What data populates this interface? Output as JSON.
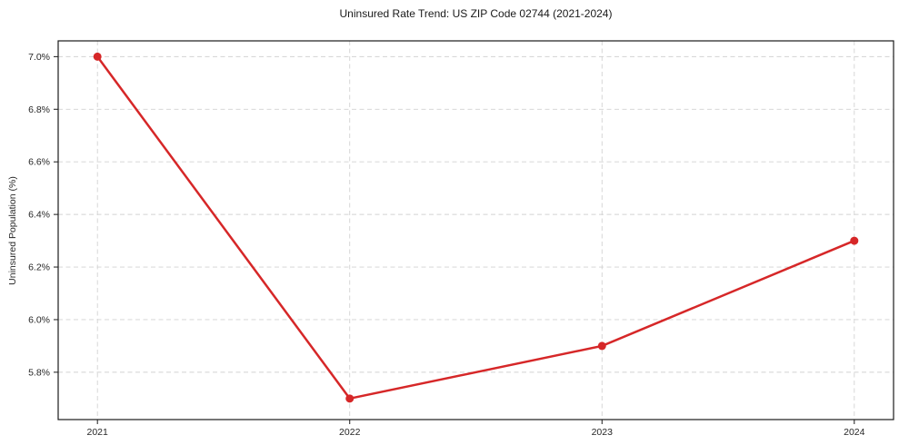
{
  "chart": {
    "title": "Uninsured Rate Trend: US ZIP Code 02744 (2021-2024)",
    "ylabel": "Uninsured Population (%)"
  },
  "chart_data": {
    "type": "line",
    "title": "Uninsured Rate Trend: US ZIP Code 02744 (2021-2024)",
    "xlabel": "",
    "ylabel": "Uninsured Population (%)",
    "categories": [
      "2021",
      "2022",
      "2023",
      "2024"
    ],
    "series": [
      {
        "name": "Uninsured Rate",
        "values": [
          7.0,
          5.7,
          5.9,
          6.3
        ]
      }
    ],
    "ylim": [
      5.62,
      7.06
    ],
    "yticks": [
      5.8,
      6.0,
      6.2,
      6.4,
      6.6,
      6.8,
      7.0
    ],
    "ytick_labels": [
      "5.8%",
      "6.0%",
      "6.2%",
      "6.4%",
      "6.6%",
      "6.8%",
      "7.0%"
    ],
    "grid": true,
    "grid_style": "dashed",
    "legend": false,
    "colors": {
      "line": "#d62728",
      "marker": "#d62728",
      "grid": "#d2d2d2",
      "axis": "#1a1a1a",
      "text": "#262626",
      "background": "#ffffff"
    }
  }
}
